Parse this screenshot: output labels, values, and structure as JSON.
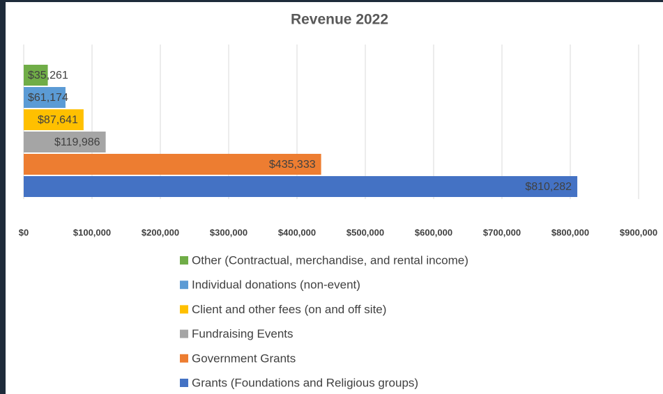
{
  "chart_data": {
    "type": "hbar",
    "title": "Revenue 2022",
    "categories": [
      "Other (Contractual, merchandise, and rental income)",
      "Individual donations (non-event)",
      "Client and other fees (on and off site)",
      "Fundraising Events",
      "Government Grants",
      "Grants (Foundations and Religious groups)"
    ],
    "values": [
      35261,
      61174,
      87641,
      119986,
      435333,
      810282
    ],
    "value_labels": [
      "$35,261",
      "$61,174",
      "$87,641",
      "$119,986",
      "$435,333",
      "$810,282"
    ],
    "colors": [
      "#70ad47",
      "#5b9bd5",
      "#ffc000",
      "#a5a5a5",
      "#ed7d31",
      "#4472c4"
    ],
    "xlim": [
      0,
      900000
    ],
    "xticks": [
      {
        "value": 0,
        "label": "$0"
      },
      {
        "value": 100000,
        "label": "$100,000"
      },
      {
        "value": 200000,
        "label": "$200,000"
      },
      {
        "value": 300000,
        "label": "$300,000"
      },
      {
        "value": 400000,
        "label": "$400,000"
      },
      {
        "value": 500000,
        "label": "$500,000"
      },
      {
        "value": 600000,
        "label": "$600,000"
      },
      {
        "value": 700000,
        "label": "$700,000"
      },
      {
        "value": 800000,
        "label": "$800,000"
      },
      {
        "value": 900000,
        "label": "$900,000"
      }
    ],
    "grid": true,
    "legend": "bottom"
  }
}
